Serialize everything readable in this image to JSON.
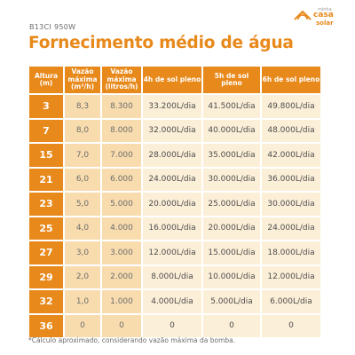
{
  "model": "B13CI 950W",
  "title": "Fornecimento médio de água",
  "logo": {
    "line1": "minha",
    "line2": "casa",
    "line3": "solar"
  },
  "colors": {
    "accent": "#e8891b",
    "light": "#f8dcae",
    "lighter": "#fcefd8"
  },
  "table": {
    "headers": [
      {
        "text": "Altura (m)"
      },
      {
        "text": "Vazão máxima (m³/h)"
      },
      {
        "text": "Vazão máxima (litros/h)"
      },
      {
        "text": "4h de sol pleno"
      },
      {
        "text": "5h de sol pleno"
      },
      {
        "text": "6h de sol pleno"
      }
    ],
    "rows": [
      {
        "cells": [
          "3",
          "8,3",
          "8.300",
          "33.200L/dia",
          "41.500L/dia",
          "49.800L/dia"
        ]
      },
      {
        "cells": [
          "7",
          "8,0",
          "8.000",
          "32.000L/dia",
          "40.000L/dia",
          "48.000L/dia"
        ]
      },
      {
        "cells": [
          "15",
          "7,0",
          "7.000",
          "28.000L/dia",
          "35.000L/dia",
          "42.000L/dia"
        ]
      },
      {
        "cells": [
          "21",
          "6,0",
          "6.000",
          "24.000L/dia",
          "30.000L/dia",
          "36.000L/dia"
        ]
      },
      {
        "cells": [
          "23",
          "5,0",
          "5.000",
          "20.000L/dia",
          "25.000L/dia",
          "30.000L/dia"
        ]
      },
      {
        "cells": [
          "25",
          "4,0",
          "4.000",
          "16.000L/dia",
          "20.000L/dia",
          "24.000L/dia"
        ]
      },
      {
        "cells": [
          "27",
          "3,0",
          "3.000",
          "12.000L/dia",
          "15.000L/dia",
          "18.000L/dia"
        ]
      },
      {
        "cells": [
          "29",
          "2,0",
          "2.000",
          "8.000L/dia",
          "10.000L/dia",
          "12.000L/dia"
        ]
      },
      {
        "cells": [
          "32",
          "1,0",
          "1.000",
          "4.000L/dia",
          "5.000L/dia",
          "6.000L/dia"
        ]
      },
      {
        "cells": [
          "36",
          "0",
          "0",
          "0",
          "0",
          "0"
        ]
      }
    ]
  },
  "footnote": "*Cálculo aproximado, considerando vazão máxima da bomba."
}
